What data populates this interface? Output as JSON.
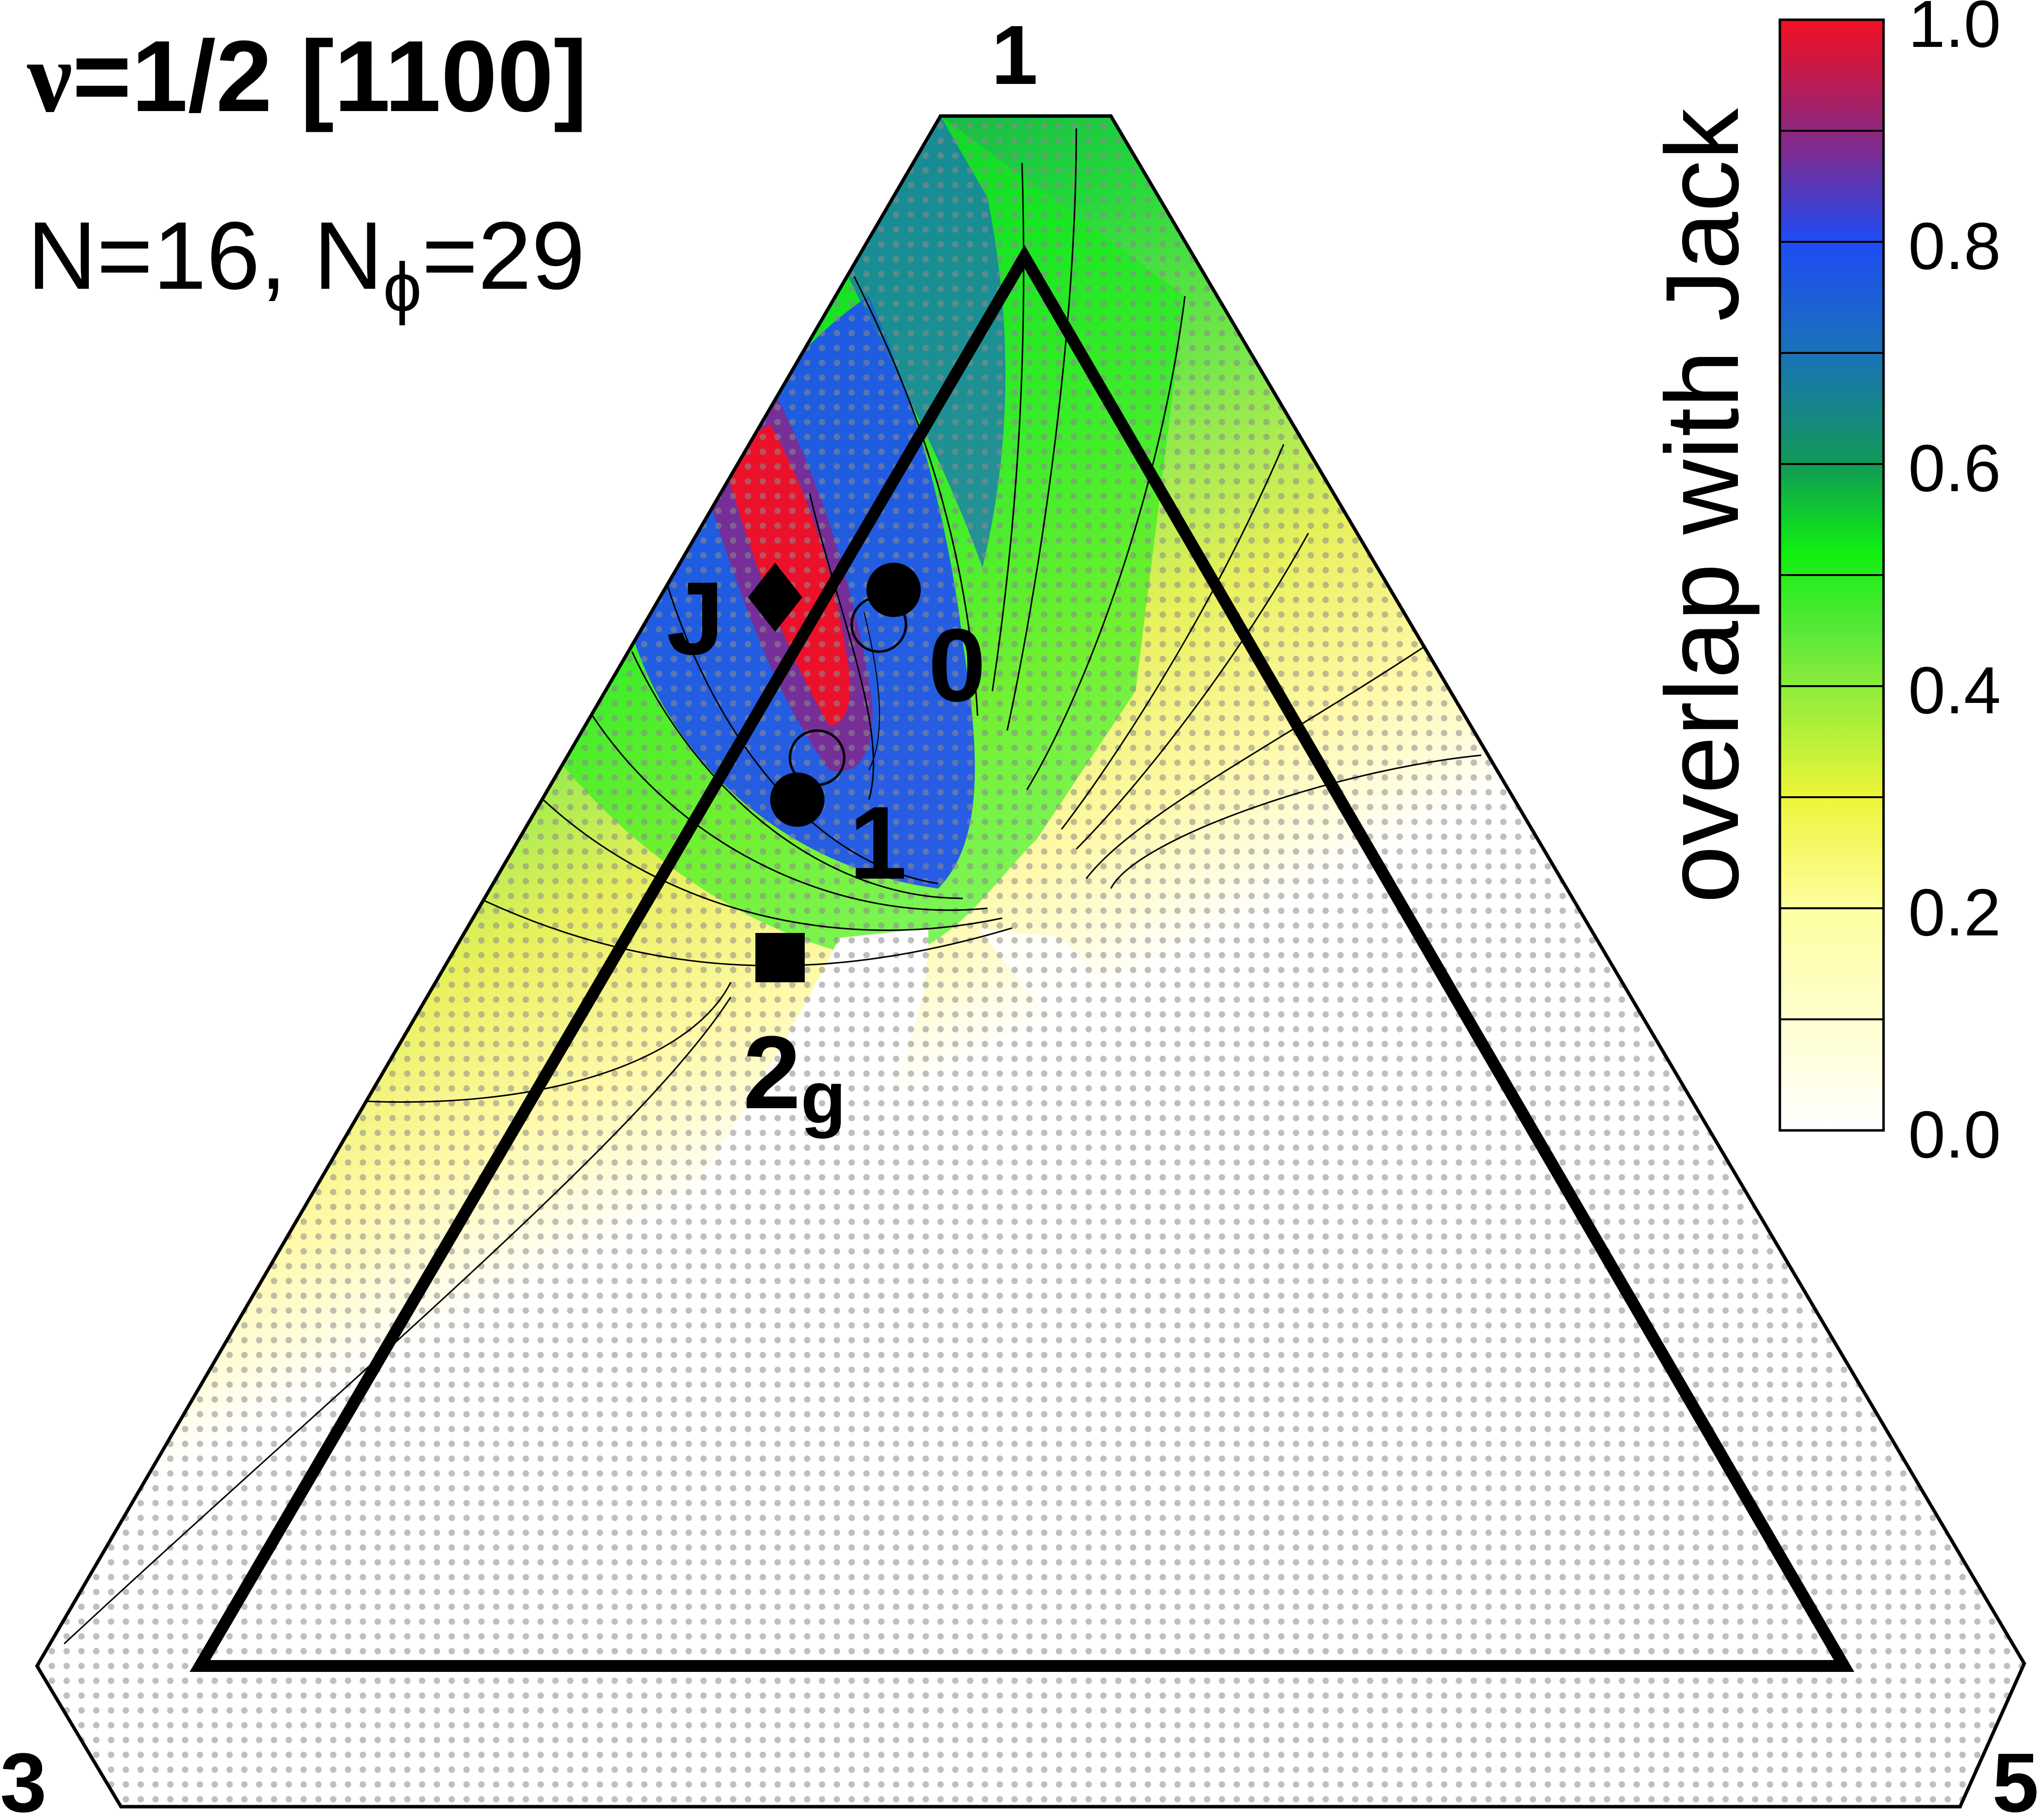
{
  "chart_data": {
    "type": "heatmap",
    "title_symbol": "ν",
    "title_rest": "=1/2 [1100]",
    "subtitle_n": "N=16, N",
    "subtitle_phi": "ϕ",
    "subtitle_tail": "=29",
    "colorbar_label": "overlap with Jack",
    "colorbar_ticks": [
      "1.0",
      "0.8",
      "0.6",
      "0.4",
      "0.2",
      "0.0"
    ],
    "colorbar_range": [
      0.0,
      1.0
    ],
    "colorbar_stops": [
      {
        "value": 0.0,
        "color": "#ffffff"
      },
      {
        "value": 0.2,
        "color": "#fefe9e"
      },
      {
        "value": 0.3,
        "color": "#eef53a"
      },
      {
        "value": 0.45,
        "color": "#5ae83a"
      },
      {
        "value": 0.52,
        "color": "#10f010"
      },
      {
        "value": 0.6,
        "color": "#119a58"
      },
      {
        "value": 0.7,
        "color": "#1a72b8"
      },
      {
        "value": 0.8,
        "color": "#1e4cf5"
      },
      {
        "value": 0.88,
        "color": "#7b2c93"
      },
      {
        "value": 0.95,
        "color": "#c11a4c"
      },
      {
        "value": 1.0,
        "color": "#f21024"
      }
    ],
    "corner_labels": {
      "top": "1",
      "bottom_left": "3",
      "bottom_right": "5"
    },
    "points": [
      {
        "label": "J",
        "marker": "diamond",
        "overlap": 1.0
      },
      {
        "label": "0",
        "marker": "filled-circle",
        "overlap": 0.75
      },
      {
        "label": "1",
        "marker": "filled-circle",
        "overlap": 0.8
      },
      {
        "label": "2",
        "subscript": "g",
        "marker": "square",
        "overlap": 0.15
      }
    ]
  },
  "colors": {
    "frame": "#000000",
    "dots": "#888888"
  }
}
